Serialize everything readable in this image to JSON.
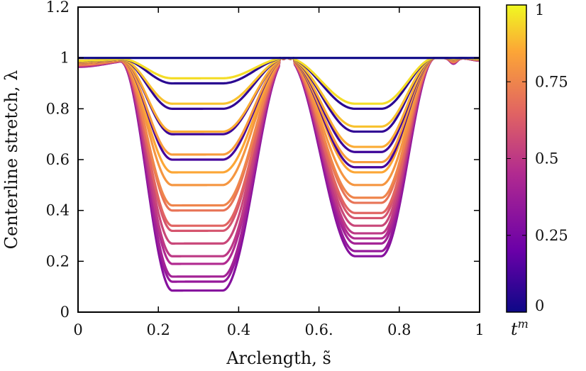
{
  "chart_data": {
    "type": "line",
    "xlabel": "Arclength, s̃",
    "ylabel": "Centerline stretch, λ",
    "xlim": [
      0,
      1
    ],
    "ylim": [
      0,
      1.2
    ],
    "x_ticks": [
      0,
      0.2,
      0.4,
      0.6,
      0.8,
      1
    ],
    "x_tick_labels": [
      "0",
      "0.2",
      "0.4",
      "0.6.",
      "0.8",
      "1"
    ],
    "y_ticks": [
      0,
      0.2,
      0.4,
      0.6,
      0.8,
      1,
      1.2
    ],
    "y_tick_labels": [
      "0",
      "0.2",
      "0.4",
      "0.6",
      "0.8",
      "1",
      "1.2"
    ],
    "colorbar": {
      "title": "t",
      "title_sup": "m",
      "range": [
        0,
        1
      ],
      "ticks": [
        0,
        0.25,
        0.5,
        0.75,
        1
      ],
      "tick_labels": [
        "0",
        "0.25",
        "0.5",
        "0.75",
        "1"
      ],
      "colors": [
        "#0d0887",
        "#6a00a8",
        "#b12a90",
        "#e16462",
        "#fca636",
        "#f0f921"
      ]
    },
    "shape": {
      "left_peak_center": 0.31,
      "right_peak_center": 0.73,
      "max_stretch": 1.0,
      "small_dip_center": 0.935
    },
    "series": [
      {
        "t": 0.3,
        "min_left": 0.085,
        "min_right": 0.22
      },
      {
        "t": 0.35,
        "min_left": 0.12,
        "min_right": 0.24
      },
      {
        "t": 0.4,
        "min_left": 0.14,
        "min_right": 0.27
      },
      {
        "t": 0.45,
        "min_left": 0.19,
        "min_right": 0.29
      },
      {
        "t": 0.5,
        "min_left": 0.22,
        "min_right": 0.31
      },
      {
        "t": 0.55,
        "min_left": 0.27,
        "min_right": 0.34
      },
      {
        "t": 0.6,
        "min_left": 0.32,
        "min_right": 0.37
      },
      {
        "t": 0.65,
        "min_left": 0.34,
        "min_right": 0.39
      },
      {
        "t": 0.7,
        "min_left": 0.4,
        "min_right": 0.43
      },
      {
        "t": 0.75,
        "min_left": 0.42,
        "min_right": 0.45
      },
      {
        "t": 0.8,
        "min_left": 0.5,
        "min_right": 0.5
      },
      {
        "t": 0.85,
        "min_left": 0.55,
        "min_right": 0.55
      },
      {
        "t": 0.12,
        "min_left": 0.6,
        "min_right": 0.57
      },
      {
        "t": 0.82,
        "min_left": 0.62,
        "min_right": 0.59
      },
      {
        "t": 0.1,
        "min_left": 0.7,
        "min_right": 0.63
      },
      {
        "t": 0.86,
        "min_left": 0.71,
        "min_right": 0.65
      },
      {
        "t": 0.08,
        "min_left": 0.8,
        "min_right": 0.71
      },
      {
        "t": 0.9,
        "min_left": 0.82,
        "min_right": 0.73
      },
      {
        "t": 0.06,
        "min_left": 0.9,
        "min_right": 0.8
      },
      {
        "t": 0.95,
        "min_left": 0.92,
        "min_right": 0.82
      },
      {
        "t": 0.0,
        "min_left": 1.0,
        "min_right": 1.0
      }
    ]
  }
}
